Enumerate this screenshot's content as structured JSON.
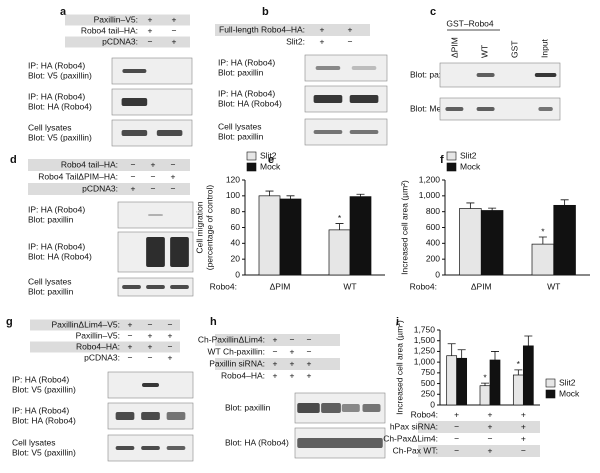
{
  "panels": {
    "a": {
      "letter": "a",
      "conditions": [
        {
          "label": "Paxillin–V5:",
          "values": [
            "+",
            "+"
          ]
        },
        {
          "label": "Robo4 tail–HA:",
          "values": [
            "+",
            "−"
          ]
        },
        {
          "label": "pCDNA3:",
          "values": [
            "−",
            "+"
          ]
        }
      ],
      "blots": [
        [
          "IP: HA (Robo4)",
          "Blot: V5 (paxillin)"
        ],
        [
          "IP: HA (Robo4)",
          "Blot: HA (Robo4)"
        ],
        [
          "Cell lysates",
          "Blot: V5 (paxillin)"
        ]
      ]
    },
    "b": {
      "letter": "b",
      "conditions": [
        {
          "label": "Full-length Robo4–HA:",
          "values": [
            "+",
            "+"
          ]
        },
        {
          "label": "Slit2:",
          "values": [
            "+",
            "−"
          ]
        }
      ],
      "blots": [
        [
          "IP: HA (Robo4)",
          "Blot: paxillin"
        ],
        [
          "IP: HA (Robo4)",
          "Blot: HA (Robo4)"
        ],
        [
          "Cell lysates",
          "Blot: paxillin"
        ]
      ]
    },
    "c": {
      "letter": "c",
      "header": "GST–Robo4",
      "lanes": [
        "ΔPIM",
        "WT",
        "GST",
        "Input"
      ],
      "blots": [
        [
          "Blot: paxillin"
        ],
        [
          "Blot: Mena"
        ]
      ]
    },
    "d": {
      "letter": "d",
      "conditions": [
        {
          "label": "Robo4 tail–HA:",
          "values": [
            "−",
            "+",
            "−"
          ]
        },
        {
          "label": "Robo4 TailΔPIM–HA:",
          "values": [
            "−",
            "−",
            "+"
          ]
        },
        {
          "label": "pCDNA3:",
          "values": [
            "+",
            "−",
            "−"
          ]
        }
      ],
      "blots": [
        [
          "IP: HA (Robo4)",
          "Blot: paxillin"
        ],
        [
          "IP: HA (Robo4)",
          "Blot: HA (Robo4)"
        ],
        [
          "Cell lysates",
          "Blot: paxillin"
        ]
      ]
    },
    "g": {
      "letter": "g",
      "conditions": [
        {
          "label": "PaxillinΔLim4–V5:",
          "values": [
            "+",
            "−",
            "−"
          ]
        },
        {
          "label": "Paxillin–V5:",
          "values": [
            "−",
            "+",
            "+"
          ]
        },
        {
          "label": "Robo4–HA:",
          "values": [
            "+",
            "+",
            "−"
          ]
        },
        {
          "label": "pCDNA3:",
          "values": [
            "−",
            "−",
            "+"
          ]
        }
      ],
      "blots": [
        [
          "IP: HA (Robo4)",
          "Blot: V5 (paxillin)"
        ],
        [
          "IP: HA (Robo4)",
          "Blot: HA (Robo4)"
        ],
        [
          "Cell lysates",
          "Blot: V5 (paxillin)"
        ]
      ]
    },
    "h": {
      "letter": "h",
      "conditions": [
        {
          "label": "Ch-PaxillinΔLim4:",
          "values": [
            "+",
            "−",
            "−"
          ]
        },
        {
          "label": "WT Ch-paxillin:",
          "values": [
            "−",
            "+",
            "−"
          ]
        },
        {
          "label": "Paxillin siRNA:",
          "values": [
            "+",
            "+",
            "+"
          ]
        },
        {
          "label": "Robo4–HA:",
          "values": [
            "+",
            "+",
            "+"
          ]
        }
      ],
      "blots": [
        [
          "Blot: paxillin"
        ],
        [
          "Blot: HA (Robo4)"
        ]
      ]
    }
  },
  "chart_data": [
    {
      "type": "bar",
      "letter": "e",
      "y_label": [
        "Cell migration",
        "(percentage of control)"
      ],
      "categories": [
        "ΔPIM",
        "WT"
      ],
      "category_label": "Robo4:",
      "series": [
        {
          "name": "Slit2",
          "color": "#e6e6e6",
          "values": [
            100,
            57
          ],
          "errors": [
            6,
            8
          ],
          "marks": [
            null,
            "*"
          ]
        },
        {
          "name": "Mock",
          "color": "#111111",
          "values": [
            96,
            99
          ],
          "errors": [
            4,
            3
          ]
        }
      ],
      "ylim": [
        0,
        120
      ],
      "yticks": [
        0,
        20,
        40,
        60,
        80,
        100,
        120
      ],
      "legend": "top-left"
    },
    {
      "type": "bar",
      "letter": "f",
      "y_label": [
        "Increased cell area (µm²)"
      ],
      "categories": [
        "ΔPIM",
        "WT"
      ],
      "category_label": "Robo4:",
      "series": [
        {
          "name": "Slit2",
          "color": "#e6e6e6",
          "values": [
            840,
            390
          ],
          "errors": [
            70,
            90
          ],
          "marks": [
            null,
            "*"
          ]
        },
        {
          "name": "Mock",
          "color": "#111111",
          "values": [
            815,
            880
          ],
          "errors": [
            30,
            70
          ]
        }
      ],
      "ylim": [
        0,
        1200
      ],
      "yticks": [
        0,
        200,
        400,
        600,
        800,
        {
          "value": 1000,
          "label": "1,000"
        },
        {
          "value": 1200,
          "label": "1,200"
        }
      ],
      "legend": "top-left"
    },
    {
      "type": "bar",
      "letter": "i",
      "y_label": [
        "Increased cell area (µm²)"
      ],
      "conditions": [
        {
          "label": "Robo4:",
          "values": [
            "+",
            "+",
            "+"
          ]
        },
        {
          "label": "hPax siRNA:",
          "values": [
            "−",
            "+",
            "+"
          ]
        },
        {
          "label": "Ch-PaxΔLim4:",
          "values": [
            "−",
            "−",
            "+"
          ]
        },
        {
          "label": "Ch-Pax WT:",
          "values": [
            "−",
            "+",
            "−"
          ]
        }
      ],
      "series": [
        {
          "name": "Slit2",
          "color": "#e6e6e6",
          "values": [
            1150,
            450,
            700
          ],
          "errors": [
            280,
            60,
            120
          ],
          "marks": [
            null,
            "*",
            "*"
          ]
        },
        {
          "name": "Mock",
          "color": "#111111",
          "values": [
            1090,
            1050,
            1380
          ],
          "errors": [
            200,
            200,
            230
          ]
        }
      ],
      "ylim": [
        0,
        1750
      ],
      "yticks": [
        0,
        250,
        500,
        750,
        {
          "value": 1000,
          "label": "1,000"
        },
        {
          "value": 1250,
          "label": "1,250"
        },
        {
          "value": 1500,
          "label": "1,500"
        },
        {
          "value": 1750,
          "label": "1,750"
        }
      ],
      "legend": "right"
    }
  ]
}
